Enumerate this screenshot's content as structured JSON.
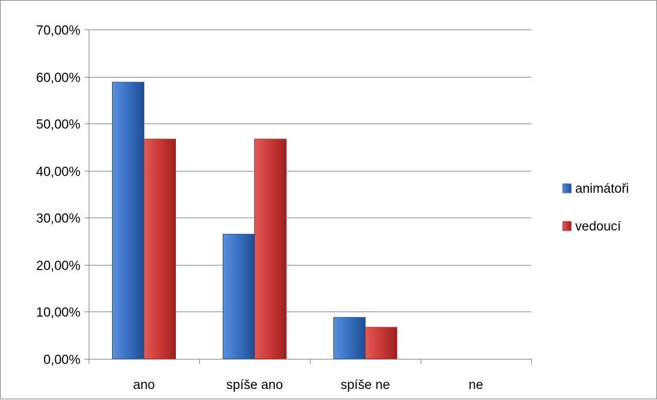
{
  "chart_data": {
    "type": "bar",
    "categories": [
      "ano",
      "spíše ano",
      "spíše ne",
      "ne"
    ],
    "series": [
      {
        "name": "animátoři",
        "color": "#3b73c4",
        "values": [
          58.8,
          26.5,
          8.8,
          0
        ]
      },
      {
        "name": "vedoucí",
        "color": "#d03a3a",
        "values": [
          46.7,
          46.7,
          6.7,
          0
        ]
      }
    ],
    "ylim": [
      0,
      70
    ],
    "yticks": [
      0,
      10,
      20,
      30,
      40,
      50,
      60,
      70
    ],
    "ytick_labels": [
      "0,00%",
      "10,00%",
      "20,00%",
      "30,00%",
      "40,00%",
      "50,00%",
      "60,00%",
      "70,00%"
    ],
    "grid": true,
    "legend_position": "right"
  }
}
